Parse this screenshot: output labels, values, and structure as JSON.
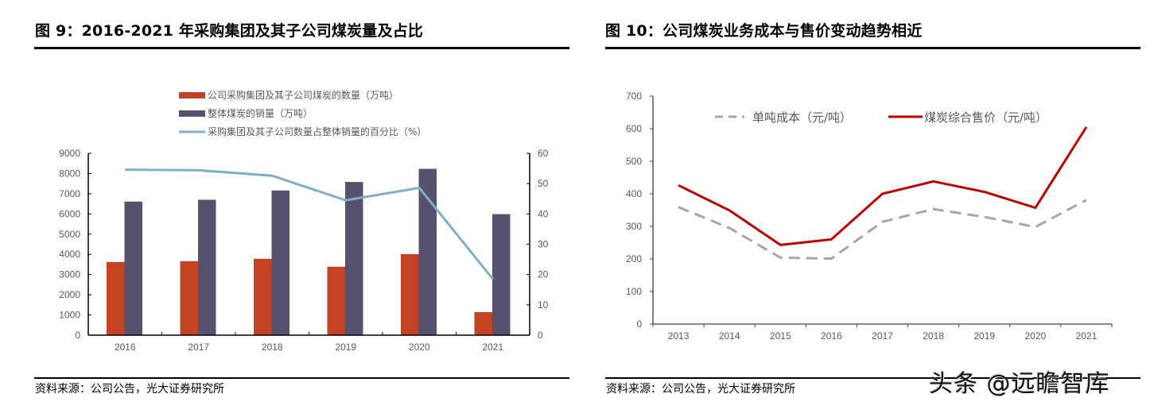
{
  "left": {
    "title": "图 9：2016-2021 年采购集团及其子公司煤炭量及占比",
    "source": "资料来源：公司公告，光大证券研究所"
  },
  "right": {
    "title": "图 10：公司煤炭业务成本与售价变动趋势相近",
    "source": "资料来源：公司公告，光大证券研究所"
  },
  "watermark": "头条 @远瞻智库",
  "chart_data": [
    {
      "type": "bar",
      "title": "2016-2021 年采购集团及其子公司煤炭量及占比",
      "categories": [
        "2016",
        "2017",
        "2018",
        "2019",
        "2020",
        "2021"
      ],
      "series": [
        {
          "name": "公司采购集团及其子公司煤炭的数量（万吨）",
          "kind": "bar",
          "axis": "left",
          "color": "#C44323",
          "values": [
            3620,
            3660,
            3780,
            3390,
            4010,
            1140
          ]
        },
        {
          "name": "整体煤炭的销量（万吨）",
          "kind": "bar",
          "axis": "left",
          "color": "#55516F",
          "values": [
            6610,
            6700,
            7160,
            7580,
            8230,
            5990
          ]
        },
        {
          "name": "采购集团及其子公司数量占整体销量的百分比（%）",
          "kind": "line",
          "axis": "right",
          "color": "#7FAFC4",
          "values": [
            54.6,
            54.4,
            52.6,
            44.5,
            48.6,
            18.5
          ]
        }
      ],
      "ylim_left": [
        0,
        9000
      ],
      "yticks_left": [
        "0",
        "1000",
        "2000",
        "3000",
        "4000",
        "5000",
        "6000",
        "7000",
        "8000",
        "9000"
      ],
      "ylim_right": [
        0,
        60
      ],
      "yticks_right": [
        "0",
        "10",
        "20",
        "30",
        "40",
        "50",
        "60"
      ],
      "legend": "top",
      "grid": false
    },
    {
      "type": "line",
      "title": "公司煤炭业务成本与售价变动趋势相近",
      "categories": [
        "2013",
        "2014",
        "2015",
        "2016",
        "2017",
        "2018",
        "2019",
        "2020",
        "2021"
      ],
      "series": [
        {
          "name": "单吨成本（元/吨）",
          "style": "dashed",
          "color": "#A6A6A6",
          "values": [
            359,
            295,
            204,
            201,
            314,
            353,
            329,
            298,
            381
          ]
        },
        {
          "name": "煤炭综合售价（元/吨）",
          "style": "solid",
          "color": "#C00000",
          "values": [
            426,
            349,
            243,
            260,
            400,
            438,
            406,
            357,
            605
          ]
        }
      ],
      "ylim": [
        0,
        700
      ],
      "yticks": [
        "0",
        "100",
        "200",
        "300",
        "400",
        "500",
        "600",
        "700"
      ],
      "legend": "top",
      "grid": false
    }
  ]
}
